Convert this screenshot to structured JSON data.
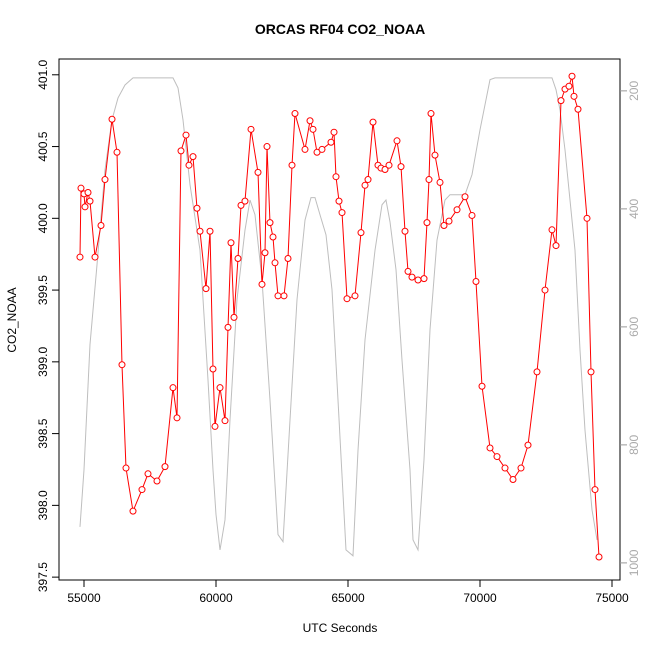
{
  "chart_data": {
    "type": "line",
    "title": "ORCAS RF04 CO2_NOAA",
    "xlabel": "UTC Seconds",
    "ylabel": "CO2_NOAA",
    "xlim": [
      54053,
      75303
    ],
    "xticks": [
      55000,
      60000,
      65000,
      70000,
      75000
    ],
    "ylim": [
      397.48,
      401.11
    ],
    "yticks": [
      397.5,
      {
        "value": 398,
        "label": "398.0"
      },
      398.5,
      {
        "value": 399,
        "label": "399.0"
      },
      399.5,
      {
        "value": 400,
        "label": "400.0"
      },
      400.5,
      {
        "value": 401,
        "label": "401.0"
      }
    ],
    "y2lim": [
      146,
      1029
    ],
    "y2_inverted": true,
    "y2ticks": [
      200,
      400,
      600,
      800,
      1000
    ],
    "series": [
      {
        "color": "#bebebe",
        "axis": "y2",
        "markers": false,
        "x": [
          54848,
          55000,
          55227,
          55492,
          55795,
          56061,
          56288,
          56553,
          56856,
          57500,
          58371,
          58561,
          58750,
          59015,
          59394,
          59697,
          59886,
          60000,
          60152,
          60341,
          60530,
          60795,
          61098,
          61288,
          61477,
          61742,
          62045,
          62348,
          62538,
          62803,
          63068,
          63371,
          63598,
          63750,
          63939,
          64167,
          64394,
          64621,
          64924,
          65189,
          65379,
          65644,
          66023,
          66288,
          66439,
          66591,
          66818,
          67045,
          67348,
          67462,
          67652,
          67879,
          68106,
          68371,
          68674,
          68864,
          69432,
          69697,
          70000,
          70379,
          70568,
          71515,
          72727,
          72879,
          73030,
          73220,
          73409,
          73598,
          73788,
          73977,
          74242,
          74432
        ],
        "values": [
          939,
          842,
          630,
          495,
          334,
          249,
          212,
          190,
          178,
          178,
          178,
          195,
          249,
          359,
          470,
          690,
          842,
          918,
          978,
          927,
          758,
          554,
          436,
          385,
          410,
          520,
          724,
          952,
          964,
          758,
          554,
          419,
          381,
          381,
          410,
          444,
          537,
          724,
          978,
          988,
          809,
          622,
          470,
          393,
          385,
          422,
          503,
          656,
          842,
          961,
          978,
          825,
          605,
          453,
          385,
          376,
          376,
          342,
          266,
          181,
          178,
          178,
          178,
          198,
          232,
          300,
          385,
          470,
          639,
          775,
          910,
          961
        ]
      },
      {
        "color": "#ff0000",
        "markers": true,
        "x": [
          54848,
          54886,
          55000,
          55038,
          55152,
          55227,
          55417,
          55644,
          55795,
          56061,
          56250,
          56439,
          56591,
          56856,
          57197,
          57424,
          57765,
          58068,
          58371,
          58523,
          58674,
          58864,
          58977,
          59129,
          59280,
          59394,
          59621,
          59773,
          59886,
          59962,
          60152,
          60341,
          60455,
          60568,
          60682,
          60833,
          60947,
          61098,
          61326,
          61591,
          61742,
          61856,
          61932,
          62045,
          62159,
          62235,
          62348,
          62576,
          62727,
          62879,
          62992,
          63371,
          63561,
          63674,
          63826,
          64015,
          64356,
          64470,
          64545,
          64659,
          64773,
          64962,
          65265,
          65492,
          65644,
          65758,
          65947,
          66136,
          66250,
          66402,
          66553,
          66856,
          67008,
          67159,
          67273,
          67424,
          67652,
          67879,
          67992,
          68068,
          68144,
          68295,
          68485,
          68636,
          68826,
          69129,
          69432,
          69697,
          69848,
          70076,
          70379,
          70644,
          70947,
          71250,
          71553,
          71818,
          72159,
          72462,
          72727,
          72879,
          73068,
          73220,
          73371,
          73485,
          73561,
          73712,
          74053,
          74205,
          74356,
          74508
        ],
        "values": [
          399.73,
          400.21,
          400.17,
          400.08,
          400.18,
          400.12,
          399.73,
          399.95,
          400.27,
          400.69,
          400.46,
          398.98,
          398.26,
          397.96,
          398.11,
          398.22,
          398.17,
          398.27,
          398.82,
          398.61,
          400.47,
          400.58,
          400.37,
          400.43,
          400.07,
          399.91,
          399.51,
          399.91,
          398.95,
          398.55,
          398.82,
          398.59,
          399.24,
          399.83,
          399.31,
          399.72,
          400.09,
          400.12,
          400.62,
          400.32,
          399.54,
          399.76,
          400.5,
          399.97,
          399.87,
          399.69,
          399.46,
          399.46,
          399.72,
          400.37,
          400.73,
          400.48,
          400.68,
          400.62,
          400.46,
          400.48,
          400.53,
          400.6,
          400.29,
          400.12,
          400.04,
          399.44,
          399.46,
          399.9,
          400.23,
          400.27,
          400.67,
          400.37,
          400.35,
          400.34,
          400.37,
          400.54,
          400.36,
          399.91,
          399.63,
          399.59,
          399.57,
          399.58,
          399.97,
          400.27,
          400.73,
          400.44,
          400.25,
          399.95,
          399.98,
          400.06,
          400.15,
          400.02,
          399.56,
          398.83,
          398.4,
          398.34,
          398.26,
          398.18,
          398.26,
          398.42,
          398.93,
          399.5,
          399.92,
          399.81,
          400.82,
          400.9,
          400.92,
          400.99,
          400.85,
          400.76,
          400,
          398.93,
          398.11,
          397.64
        ]
      }
    ]
  }
}
